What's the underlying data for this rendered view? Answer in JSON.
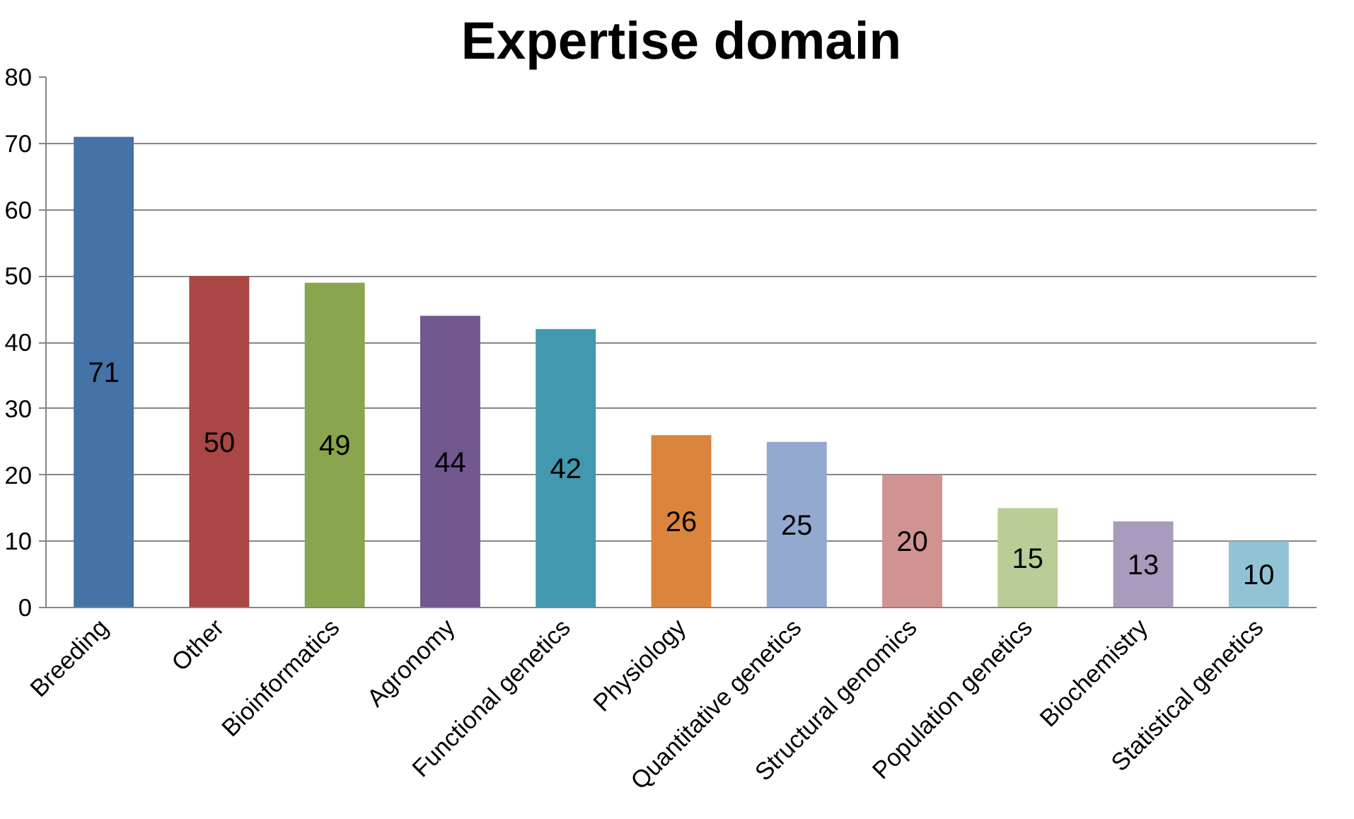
{
  "chart_data": {
    "type": "bar",
    "title": "Expertise domain",
    "categories": [
      "Breeding",
      "Other",
      "Bioinformatics",
      "Agronomy",
      "Functional genetics",
      "Physiology",
      "Quantitative genetics",
      "Structural genomics",
      "Population genetics",
      "Biochemistry",
      "Statistical genetics"
    ],
    "values": [
      71,
      50,
      49,
      44,
      42,
      26,
      25,
      20,
      15,
      13,
      10
    ],
    "colors": [
      "#4572a7",
      "#aa4643",
      "#89a54e",
      "#71588f",
      "#4198af",
      "#db843d",
      "#93a9cf",
      "#d19392",
      "#b9cd96",
      "#a99bbd",
      "#91c3d5"
    ],
    "ylim": [
      0,
      80
    ],
    "yticks": [
      0,
      10,
      20,
      30,
      40,
      50,
      60,
      70,
      80
    ],
    "grid": "y",
    "data_labels": true
  }
}
